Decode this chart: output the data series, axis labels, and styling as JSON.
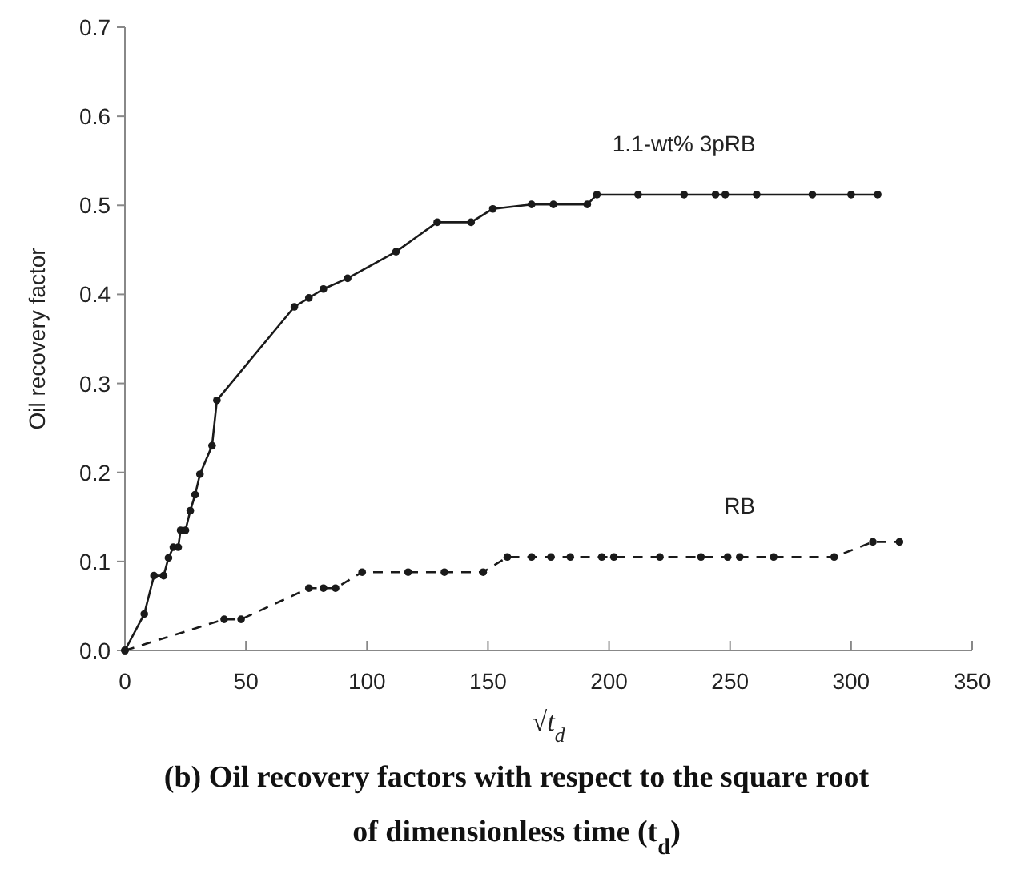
{
  "chart_data": {
    "type": "line",
    "title": "(b) Oil recovery factors with respect to the square root of dimensionless time (t$_{d}$)",
    "xlabel": "√t$_{d}$",
    "ylabel": "Oil recovery factor",
    "xlim": [
      0,
      350
    ],
    "xticks": [
      0,
      50,
      100,
      150,
      200,
      250,
      300,
      350
    ],
    "ylim": [
      0,
      0.7
    ],
    "yticks": [
      {
        "value": 0,
        "label": "0.0"
      },
      0.1,
      0.2,
      0.3,
      0.4,
      0.5,
      0.6,
      0.7
    ],
    "grid": false,
    "marker": "circle",
    "series": [
      {
        "name": "1.1-wt% 3pRB",
        "color": "#1a1a1a",
        "line_style": "solid",
        "x": [
          0,
          8,
          12,
          16,
          18,
          20,
          22,
          23,
          25,
          27,
          29,
          31,
          36,
          38,
          70,
          76,
          82,
          92,
          112,
          129,
          143,
          152,
          168,
          177,
          191,
          195,
          212,
          231,
          244,
          248,
          261,
          284,
          300,
          311
        ],
        "values": [
          0,
          0.041,
          0.084,
          0.084,
          0.104,
          0.116,
          0.116,
          0.135,
          0.135,
          0.157,
          0.175,
          0.198,
          0.23,
          0.281,
          0.386,
          0.396,
          0.406,
          0.418,
          0.448,
          0.481,
          0.481,
          0.496,
          0.501,
          0.501,
          0.501,
          0.512,
          0.512,
          0.512,
          0.512,
          0.512,
          0.512,
          0.512,
          0.512,
          0.512
        ]
      },
      {
        "name": "RB",
        "color": "#1a1a1a",
        "line_style": "dashed",
        "x": [
          0,
          41,
          48,
          76,
          82,
          87,
          98,
          117,
          132,
          148,
          158,
          168,
          176,
          184,
          197,
          202,
          221,
          238,
          249,
          254,
          268,
          293,
          309,
          320
        ],
        "values": [
          0,
          0.035,
          0.035,
          0.07,
          0.07,
          0.07,
          0.088,
          0.088,
          0.088,
          0.088,
          0.105,
          0.105,
          0.105,
          0.105,
          0.105,
          0.105,
          0.105,
          0.105,
          0.105,
          0.105,
          0.105,
          0.105,
          0.122,
          0.122
        ]
      }
    ]
  }
}
